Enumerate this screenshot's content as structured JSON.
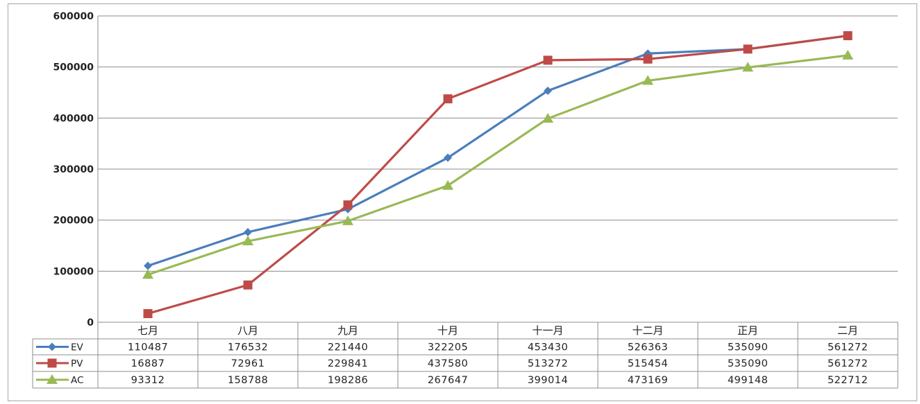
{
  "chart_data": {
    "type": "line",
    "categories": [
      "七月",
      "八月",
      "九月",
      "十月",
      "十一月",
      "十二月",
      "正月",
      "二月"
    ],
    "series": [
      {
        "name": "EV",
        "color": "#4a7ebb",
        "marker": "diamond",
        "values": [
          110487,
          176532,
          221440,
          322205,
          453430,
          526363,
          535090,
          561272
        ]
      },
      {
        "name": "PV",
        "color": "#be4b48",
        "marker": "square",
        "values": [
          16887,
          72961,
          229841,
          437580,
          513272,
          515454,
          535090,
          561272
        ]
      },
      {
        "name": "AC",
        "color": "#98b954",
        "marker": "triangle",
        "values": [
          93312,
          158788,
          198286,
          267647,
          399014,
          473169,
          499148,
          522712
        ]
      }
    ],
    "yticks": [
      "0",
      "100000",
      "200000",
      "300000",
      "400000",
      "500000",
      "600000"
    ],
    "ylim": [
      0,
      600000
    ],
    "grid": true,
    "data_table": true
  }
}
